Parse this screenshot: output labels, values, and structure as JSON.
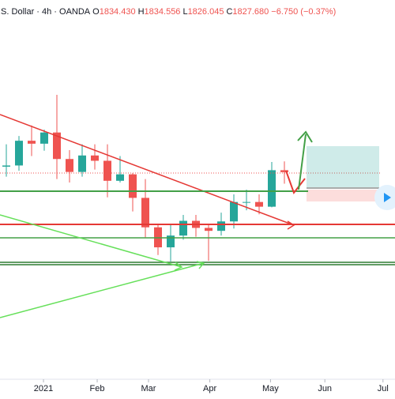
{
  "chart_data": {
    "type": "candlestick",
    "title": ".S. Dollar · 4h · OANDA",
    "legend": [
      {
        "label": "O",
        "value": "1834.430"
      },
      {
        "label": "H",
        "value": "1834.556"
      },
      {
        "label": "L",
        "value": "1826.045"
      },
      {
        "label": "C",
        "value": "1827.680"
      }
    ],
    "change": "−6.750 (−0.37%)",
    "up_color": "#26a69a",
    "down_color": "#ef5350",
    "open": [
      1837,
      1839,
      1881,
      1876,
      1895,
      1850,
      1828,
      1856,
      1847,
      1813,
      1824,
      1784,
      1734,
      1700,
      1720,
      1745,
      1733,
      1728,
      1744,
      1777,
      1777,
      1769,
      1831
    ],
    "high": [
      1875,
      1889,
      1907,
      1900,
      1959,
      1865,
      1875,
      1875,
      1875,
      1855,
      1826,
      1816,
      1740,
      1740,
      1755,
      1755,
      1740,
      1759,
      1790,
      1798,
      1790,
      1845,
      1846
    ],
    "low": [
      1820,
      1830,
      1855,
      1864,
      1816,
      1810,
      1820,
      1832,
      1785,
      1810,
      1761,
      1717,
      1687,
      1676,
      1713,
      1718,
      1677,
      1720,
      1732,
      1763,
      1756,
      1768,
      1808
    ],
    "close": [
      1839,
      1881,
      1876,
      1895,
      1850,
      1828,
      1856,
      1847,
      1813,
      1824,
      1784,
      1734,
      1700,
      1720,
      1745,
      1733,
      1728,
      1744,
      1777,
      1777,
      1769,
      1831,
      1827.68
    ],
    "xlim": [
      -0.5,
      30.75
    ],
    "xticks": [
      {
        "value": 2.94,
        "label": "2021"
      },
      {
        "value": 7.19,
        "label": "Feb"
      },
      {
        "value": 11.25,
        "label": "Mar"
      },
      {
        "value": 16.1,
        "label": "Apr"
      },
      {
        "value": 20.9,
        "label": "May"
      },
      {
        "value": 25.2,
        "label": "Jun"
      },
      {
        "value": 29.8,
        "label": "Jul"
      }
    ],
    "ylim": [
      1476,
      2120
    ]
  }
}
